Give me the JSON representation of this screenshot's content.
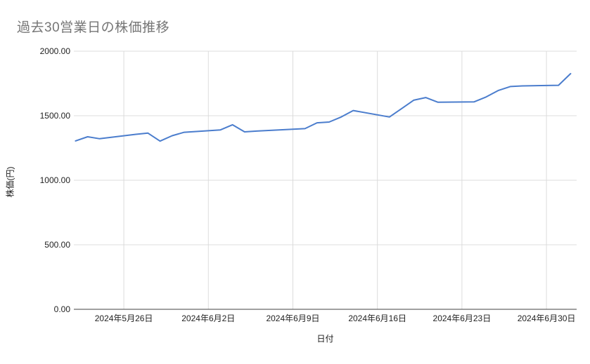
{
  "title": "過去30営業日の株価推移",
  "axes": {
    "x_title": "日付",
    "y_title": "株価(円)"
  },
  "colors": {
    "line": "#4b7dcd",
    "grid": "#dcdcdc",
    "axis_line": "#424242",
    "tick_text": "#222222",
    "title_text": "#757575"
  },
  "chart_data": {
    "type": "line",
    "title": "過去30営業日の株価推移",
    "xlabel": "日付",
    "ylabel": "株価(円)",
    "ylim": [
      0,
      2000
    ],
    "xlim_day_offsets": [
      -0.14,
      41.5
    ],
    "grid": true,
    "legend": "none",
    "y_ticks": [
      0,
      500,
      1000,
      1500,
      2000
    ],
    "y_tick_labels": [
      "0.00",
      "500.00",
      "1000.00",
      "1500.00",
      "2000.00"
    ],
    "x_ticks": [
      {
        "label": "2024年5月26日",
        "day_offset": 4
      },
      {
        "label": "2024年6月2日",
        "day_offset": 11
      },
      {
        "label": "2024年6月9日",
        "day_offset": 18
      },
      {
        "label": "2024年6月16日",
        "day_offset": 25
      },
      {
        "label": "2024年6月23日",
        "day_offset": 32
      },
      {
        "label": "2024年6月30日",
        "day_offset": 39
      }
    ],
    "series": [
      {
        "name": "株価",
        "x_dates": [
          "2024-05-22",
          "2024-05-23",
          "2024-05-24",
          "2024-05-27",
          "2024-05-28",
          "2024-05-29",
          "2024-05-30",
          "2024-05-31",
          "2024-06-03",
          "2024-06-04",
          "2024-06-05",
          "2024-06-06",
          "2024-06-07",
          "2024-06-10",
          "2024-06-11",
          "2024-06-12",
          "2024-06-13",
          "2024-06-14",
          "2024-06-17",
          "2024-06-18",
          "2024-06-19",
          "2024-06-20",
          "2024-06-21",
          "2024-06-24",
          "2024-06-25",
          "2024-06-26",
          "2024-06-27",
          "2024-06-28",
          "2024-07-01",
          "2024-07-02"
        ],
        "x_day_offsets": [
          0,
          1,
          2,
          5,
          6,
          7,
          8,
          9,
          12,
          13,
          14,
          15,
          16,
          19,
          20,
          21,
          22,
          23,
          26,
          27,
          28,
          29,
          30,
          33,
          34,
          35,
          36,
          37,
          40,
          41
        ],
        "values": [
          1305,
          1337,
          1322,
          1356,
          1365,
          1303,
          1345,
          1372,
          1390,
          1430,
          1375,
          1381,
          1386,
          1400,
          1445,
          1451,
          1490,
          1540,
          1490,
          1555,
          1620,
          1641,
          1605,
          1607,
          1645,
          1695,
          1726,
          1731,
          1736,
          1826
        ]
      }
    ]
  }
}
